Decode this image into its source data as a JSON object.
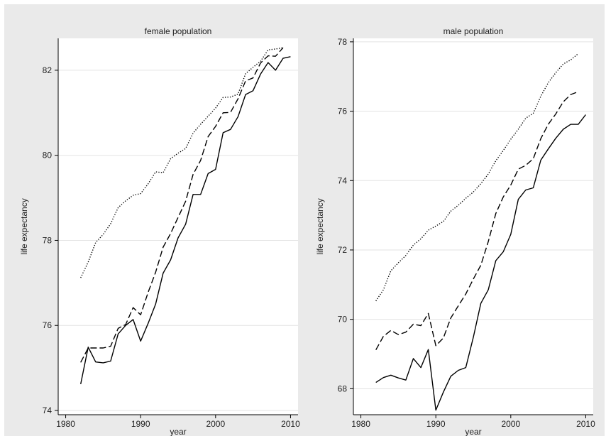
{
  "chart_data": [
    {
      "type": "line",
      "title": "female population",
      "xlabel": "year",
      "ylabel": "life expectancy",
      "xlim": [
        1979,
        2011
      ],
      "ylim": [
        73.9,
        82.75
      ],
      "xticks": [
        1980,
        1990,
        2000,
        2010
      ],
      "yticks": [
        74,
        76,
        78,
        80,
        82
      ],
      "grid": true,
      "series": [
        {
          "style": "solid",
          "x": [
            1982,
            1983,
            1984,
            1985,
            1986,
            1987,
            1988,
            1989,
            1990,
            1991,
            1992,
            1993,
            1994,
            1995,
            1996,
            1997,
            1998,
            1999,
            2000,
            2001,
            2002,
            2003,
            2004,
            2005,
            2006,
            2007,
            2008,
            2009,
            2010
          ],
          "values": [
            74.62,
            75.49,
            75.14,
            75.12,
            75.16,
            75.8,
            76.0,
            76.14,
            75.63,
            76.05,
            76.5,
            77.23,
            77.54,
            78.06,
            78.38,
            79.08,
            79.08,
            79.57,
            79.67,
            80.53,
            80.61,
            80.91,
            81.43,
            81.52,
            81.91,
            82.18,
            82.0,
            82.28,
            82.32
          ]
        },
        {
          "style": "dashed",
          "x": [
            1982,
            1983,
            1984,
            1985,
            1986,
            1987,
            1988,
            1989,
            1990,
            1991,
            1992,
            1993,
            1994,
            1995,
            1996,
            1997,
            1998,
            1999,
            2000,
            2001,
            2002,
            2003,
            2004,
            2005,
            2006,
            2007,
            2008,
            2009
          ],
          "values": [
            75.13,
            75.47,
            75.47,
            75.47,
            75.51,
            75.93,
            76.02,
            76.42,
            76.25,
            76.78,
            77.25,
            77.84,
            78.16,
            78.54,
            78.92,
            79.55,
            79.88,
            80.44,
            80.68,
            81.0,
            81.01,
            81.33,
            81.75,
            81.82,
            82.17,
            82.34,
            82.33,
            82.53
          ]
        },
        {
          "style": "dotted",
          "x": [
            1982,
            1983,
            1984,
            1985,
            1986,
            1987,
            1988,
            1989,
            1990,
            1991,
            1992,
            1993,
            1994,
            1995,
            1996,
            1997,
            1998,
            1999,
            2000,
            2001,
            2002,
            2003,
            2004,
            2005,
            2006,
            2007,
            2008,
            2009
          ],
          "values": [
            77.12,
            77.49,
            77.95,
            78.14,
            78.39,
            78.77,
            78.93,
            79.06,
            79.1,
            79.33,
            79.61,
            79.59,
            79.92,
            80.05,
            80.16,
            80.52,
            80.73,
            80.92,
            81.11,
            81.36,
            81.37,
            81.44,
            81.92,
            82.07,
            82.21,
            82.48,
            82.5,
            82.53
          ]
        }
      ]
    },
    {
      "type": "line",
      "title": "male population",
      "xlabel": "year",
      "ylabel": "life expectancy",
      "xlim": [
        1979,
        2011
      ],
      "ylim": [
        67.25,
        78.1
      ],
      "xticks": [
        1980,
        1990,
        2000,
        2010
      ],
      "yticks": [
        68,
        70,
        72,
        74,
        76,
        78
      ],
      "grid": true,
      "series": [
        {
          "style": "solid",
          "x": [
            1982,
            1983,
            1984,
            1985,
            1986,
            1987,
            1988,
            1989,
            1990,
            1991,
            1992,
            1993,
            1994,
            1995,
            1996,
            1997,
            1998,
            1999,
            2000,
            2001,
            2002,
            2003,
            2004,
            2005,
            2006,
            2007,
            2008,
            2009,
            2010
          ],
          "values": [
            68.18,
            68.32,
            68.39,
            68.31,
            68.25,
            68.87,
            68.61,
            69.13,
            67.38,
            67.9,
            68.36,
            68.53,
            68.61,
            69.48,
            70.46,
            70.85,
            71.69,
            71.95,
            72.45,
            73.46,
            73.73,
            73.79,
            74.59,
            74.91,
            75.22,
            75.48,
            75.62,
            75.62,
            75.9
          ]
        },
        {
          "style": "dashed",
          "x": [
            1982,
            1983,
            1984,
            1985,
            1986,
            1987,
            1988,
            1989,
            1990,
            1991,
            1992,
            1993,
            1994,
            1995,
            1996,
            1997,
            1998,
            1999,
            2000,
            2001,
            2002,
            2003,
            2004,
            2005,
            2006,
            2007,
            2008,
            2009
          ],
          "values": [
            69.12,
            69.51,
            69.68,
            69.56,
            69.63,
            69.86,
            69.82,
            70.17,
            69.24,
            69.46,
            70.04,
            70.39,
            70.73,
            71.16,
            71.56,
            72.24,
            73.05,
            73.53,
            73.87,
            74.33,
            74.44,
            74.63,
            75.21,
            75.62,
            75.92,
            76.27,
            76.48,
            76.56
          ]
        },
        {
          "style": "dotted",
          "x": [
            1982,
            1983,
            1984,
            1985,
            1986,
            1987,
            1988,
            1989,
            1990,
            1991,
            1992,
            1993,
            1994,
            1995,
            1996,
            1997,
            1998,
            1999,
            2000,
            2001,
            2002,
            2003,
            2004,
            2005,
            2006,
            2007,
            2008,
            2009
          ],
          "values": [
            70.53,
            70.85,
            71.4,
            71.63,
            71.84,
            72.14,
            72.32,
            72.57,
            72.69,
            72.82,
            73.12,
            73.29,
            73.49,
            73.67,
            73.91,
            74.19,
            74.57,
            74.87,
            75.19,
            75.48,
            75.8,
            75.94,
            76.43,
            76.82,
            77.11,
            77.36,
            77.48,
            77.66
          ]
        }
      ]
    }
  ]
}
